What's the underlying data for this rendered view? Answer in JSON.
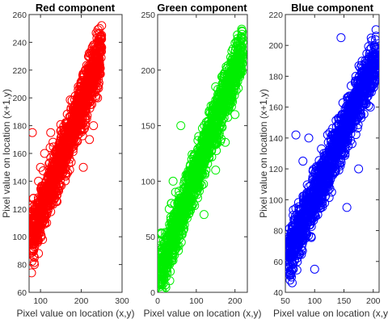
{
  "chart_data": [
    {
      "type": "scatter",
      "title": "Red component",
      "xlabel": "Pixel value on location (x,y)",
      "ylabel": "Pixel value on location (x+1,y)",
      "xlim": [
        72,
        300
      ],
      "ylim": [
        60,
        260
      ],
      "xticks": [
        100,
        200,
        300
      ],
      "yticks": [
        60,
        80,
        100,
        120,
        140,
        160,
        180,
        200,
        220,
        240,
        260
      ],
      "color": "#ff0000",
      "series": [
        {
          "values": [
            [
              78,
              74
            ],
            [
              80,
              90
            ],
            [
              85,
              80
            ],
            [
              90,
              100
            ],
            [
              95,
              88
            ],
            [
              100,
              108
            ],
            [
              105,
              98
            ],
            [
              110,
              120
            ],
            [
              115,
              110
            ],
            [
              120,
              130
            ],
            [
              125,
              118
            ],
            [
              130,
              140
            ],
            [
              135,
              128
            ],
            [
              140,
              150
            ],
            [
              145,
              138
            ],
            [
              150,
              160
            ],
            [
              155,
              148
            ],
            [
              160,
              170
            ],
            [
              165,
              158
            ],
            [
              170,
              180
            ],
            [
              175,
              168
            ],
            [
              180,
              190
            ],
            [
              185,
              178
            ],
            [
              190,
              200
            ],
            [
              195,
              188
            ],
            [
              200,
              210
            ],
            [
              205,
              198
            ],
            [
              210,
              220
            ],
            [
              215,
              208
            ],
            [
              220,
              230
            ],
            [
              225,
              218
            ],
            [
              230,
              238
            ],
            [
              235,
              228
            ],
            [
              240,
              246
            ],
            [
              245,
              238
            ],
            [
              250,
              252
            ],
            [
              248,
              244
            ],
            [
              95,
              140
            ],
            [
              110,
              160
            ],
            [
              205,
              150
            ],
            [
              220,
              170
            ],
            [
              100,
              150
            ],
            [
              230,
              180
            ],
            [
              85,
              115
            ],
            [
              240,
              200
            ],
            [
              125,
              175
            ],
            [
              80,
              175
            ]
          ]
        }
      ]
    },
    {
      "type": "scatter",
      "title": "Green component",
      "xlabel": "Pixel value on location (x,y)",
      "ylabel": "",
      "xlim": [
        0,
        232
      ],
      "ylim": [
        0,
        250
      ],
      "xticks": [
        0,
        100,
        200
      ],
      "yticks": [
        0,
        50,
        100,
        150,
        200,
        250
      ],
      "color": "#00ee00",
      "series": [
        {
          "values": [
            [
              5,
              5
            ],
            [
              10,
              15
            ],
            [
              15,
              8
            ],
            [
              20,
              25
            ],
            [
              25,
              18
            ],
            [
              30,
              35
            ],
            [
              35,
              28
            ],
            [
              40,
              50
            ],
            [
              45,
              38
            ],
            [
              50,
              60
            ],
            [
              55,
              48
            ],
            [
              60,
              72
            ],
            [
              65,
              60
            ],
            [
              70,
              85
            ],
            [
              75,
              72
            ],
            [
              80,
              95
            ],
            [
              85,
              85
            ],
            [
              90,
              108
            ],
            [
              95,
              98
            ],
            [
              100,
              118
            ],
            [
              105,
              110
            ],
            [
              110,
              130
            ],
            [
              115,
              122
            ],
            [
              120,
              140
            ],
            [
              125,
              133
            ],
            [
              130,
              150
            ],
            [
              135,
              145
            ],
            [
              140,
              160
            ],
            [
              145,
              155
            ],
            [
              150,
              170
            ],
            [
              155,
              165
            ],
            [
              160,
              180
            ],
            [
              165,
              175
            ],
            [
              170,
              188
            ],
            [
              175,
              182
            ],
            [
              180,
              195
            ],
            [
              185,
              190
            ],
            [
              190,
              200
            ],
            [
              195,
              196
            ],
            [
              200,
              208
            ],
            [
              205,
              202
            ],
            [
              210,
              215
            ],
            [
              215,
              210
            ],
            [
              220,
              225
            ],
            [
              60,
              150
            ],
            [
              120,
              70
            ],
            [
              40,
              100
            ],
            [
              150,
              110
            ],
            [
              30,
              75
            ],
            [
              175,
              135
            ],
            [
              200,
              160
            ]
          ]
        }
      ]
    },
    {
      "type": "scatter",
      "title": "Blue component",
      "xlabel": "Pixel value on location (x,y)",
      "ylabel": "Pixel value on location (x+1,y)",
      "xlim": [
        50,
        210
      ],
      "ylim": [
        40,
        220
      ],
      "xticks": [
        50,
        100,
        150,
        200
      ],
      "yticks": [
        40,
        60,
        80,
        100,
        120,
        140,
        160,
        180,
        200,
        220
      ],
      "color": "#0000ff",
      "series": [
        {
          "values": [
            [
              55,
              55
            ],
            [
              58,
              62
            ],
            [
              62,
              58
            ],
            [
              66,
              68
            ],
            [
              70,
              64
            ],
            [
              74,
              75
            ],
            [
              78,
              70
            ],
            [
              82,
              82
            ],
            [
              86,
              78
            ],
            [
              90,
              90
            ],
            [
              94,
              86
            ],
            [
              98,
              98
            ],
            [
              102,
              94
            ],
            [
              106,
              106
            ],
            [
              110,
              102
            ],
            [
              114,
              114
            ],
            [
              118,
              110
            ],
            [
              122,
              122
            ],
            [
              126,
              118
            ],
            [
              130,
              130
            ],
            [
              134,
              126
            ],
            [
              138,
              138
            ],
            [
              142,
              134
            ],
            [
              146,
              146
            ],
            [
              150,
              142
            ],
            [
              154,
              154
            ],
            [
              158,
              150
            ],
            [
              162,
              162
            ],
            [
              166,
              158
            ],
            [
              170,
              170
            ],
            [
              174,
              166
            ],
            [
              178,
              178
            ],
            [
              182,
              174
            ],
            [
              186,
              184
            ],
            [
              190,
              182
            ],
            [
              194,
              192
            ],
            [
              198,
              190
            ],
            [
              202,
              200
            ],
            [
              205,
              206
            ],
            [
              68,
              142
            ],
            [
              90,
              140
            ],
            [
              145,
              205
            ],
            [
              155,
              95
            ],
            [
              175,
              120
            ],
            [
              100,
              55
            ],
            [
              80,
              125
            ],
            [
              195,
              160
            ]
          ]
        }
      ]
    }
  ]
}
